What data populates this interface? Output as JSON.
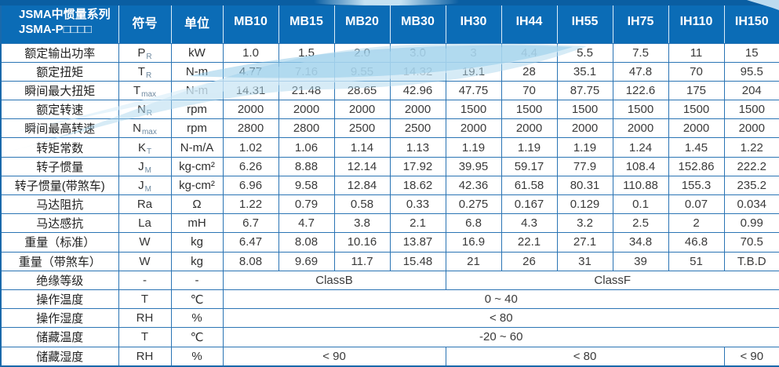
{
  "colors": {
    "header_bg": "#0b6cb6",
    "top_band": "#0a5ea2",
    "grid_line": "#2a74b4",
    "outer_border": "#1a69ab",
    "swoosh_light": "#d7edf9",
    "swoosh_mid": "#aed7ee",
    "swoosh_deep": "#8cc8e8",
    "body_text": "#3a3a3a"
  },
  "header": {
    "title_line1": "JSMA中惯量系列",
    "title_line2": "JSMA-P□□□□",
    "symbol_col": "符号",
    "unit_col": "单位",
    "models": [
      "MB10",
      "MB15",
      "MB20",
      "MB30",
      "IH30",
      "IH44",
      "IH55",
      "IH75",
      "IH110",
      "IH150"
    ]
  },
  "rows": [
    {
      "label": "额定输出功率",
      "symbol": {
        "base": "P",
        "sub": "R"
      },
      "unit": "kW",
      "values": [
        "1.0",
        "1.5",
        "2.0",
        "3.0",
        "3",
        "4.4",
        "5.5",
        "7.5",
        "11",
        "15"
      ]
    },
    {
      "label": "额定扭矩",
      "symbol": {
        "base": "T",
        "sub": "R"
      },
      "unit": "N-m",
      "values": [
        "4.77",
        "7.16",
        "9.55",
        "14.32",
        "19.1",
        "28",
        "35.1",
        "47.8",
        "70",
        "95.5"
      ]
    },
    {
      "label": "瞬间最大扭矩",
      "symbol": {
        "base": "T",
        "sub": "max"
      },
      "unit": "N-m",
      "values": [
        "14.31",
        "21.48",
        "28.65",
        "42.96",
        "47.75",
        "70",
        "87.75",
        "122.6",
        "175",
        "204"
      ]
    },
    {
      "label": "额定转速",
      "symbol": {
        "base": "N",
        "sub": "R"
      },
      "unit": "rpm",
      "values": [
        "2000",
        "2000",
        "2000",
        "2000",
        "1500",
        "1500",
        "1500",
        "1500",
        "1500",
        "1500"
      ]
    },
    {
      "label": "瞬间最高转速",
      "symbol": {
        "base": "N",
        "sub": "max"
      },
      "unit": "rpm",
      "values": [
        "2800",
        "2800",
        "2500",
        "2500",
        "2000",
        "2000",
        "2000",
        "2000",
        "2000",
        "2000"
      ]
    },
    {
      "label": "转矩常数",
      "symbol": {
        "base": "K",
        "sub": "T"
      },
      "unit": "N-m/A",
      "values": [
        "1.02",
        "1.06",
        "1.14",
        "1.13",
        "1.19",
        "1.19",
        "1.19",
        "1.24",
        "1.45",
        "1.22"
      ]
    },
    {
      "label": "转子惯量",
      "symbol": {
        "base": "J",
        "sub": "M"
      },
      "unit": "kg-cm²",
      "values": [
        "6.26",
        "8.88",
        "12.14",
        "17.92",
        "39.95",
        "59.17",
        "77.9",
        "108.4",
        "152.86",
        "222.2"
      ]
    },
    {
      "label": "转子惯量(带煞车)",
      "symbol": {
        "base": "J",
        "sub": "M"
      },
      "unit": "kg-cm²",
      "values": [
        "6.96",
        "9.58",
        "12.84",
        "18.62",
        "42.36",
        "61.58",
        "80.31",
        "110.88",
        "155.3",
        "235.2"
      ]
    },
    {
      "label": "马达阻抗",
      "symbol": {
        "base": "Ra"
      },
      "unit": "Ω",
      "values": [
        "1.22",
        "0.79",
        "0.58",
        "0.33",
        "0.275",
        "0.167",
        "0.129",
        "0.1",
        "0.07",
        "0.034"
      ]
    },
    {
      "label": "马达感抗",
      "symbol": {
        "base": "La"
      },
      "unit": "mH",
      "values": [
        "6.7",
        "4.7",
        "3.8",
        "2.1",
        "6.8",
        "4.3",
        "3.2",
        "2.5",
        "2",
        "0.99"
      ]
    },
    {
      "label": "重量（标准）",
      "symbol": {
        "base": "W"
      },
      "unit": "kg",
      "values": [
        "6.47",
        "8.08",
        "10.16",
        "13.87",
        "16.9",
        "22.1",
        "27.1",
        "34.8",
        "46.8",
        "70.5"
      ]
    },
    {
      "label": "重量（带煞车）",
      "symbol": {
        "base": "W"
      },
      "unit": "kg",
      "values": [
        "8.08",
        "9.69",
        "11.7",
        "15.48",
        "21",
        "26",
        "31",
        "39",
        "51",
        "T.B.D"
      ]
    },
    {
      "label": "绝缘等级",
      "symbol": {
        "base": "-"
      },
      "unit": "-",
      "spans": [
        {
          "text": "ClassB",
          "cols": 4
        },
        {
          "text": "ClassF",
          "cols": 6
        }
      ]
    },
    {
      "label": "操作温度",
      "symbol": {
        "base": "T"
      },
      "unit": "℃",
      "spans": [
        {
          "text": "0 ~ 40",
          "cols": 10
        }
      ]
    },
    {
      "label": "操作湿度",
      "symbol": {
        "base": "RH"
      },
      "unit": "%",
      "spans": [
        {
          "text": "< 80",
          "cols": 10
        }
      ]
    },
    {
      "label": "储藏温度",
      "symbol": {
        "base": "T"
      },
      "unit": "℃",
      "spans": [
        {
          "text": "-20 ~ 60",
          "cols": 10
        }
      ]
    },
    {
      "label": "储藏湿度",
      "symbol": {
        "base": "RH"
      },
      "unit": "%",
      "spans": [
        {
          "text": "< 90",
          "cols": 4
        },
        {
          "text": "< 80",
          "cols": 5
        },
        {
          "text": "< 90",
          "cols": 1
        }
      ]
    }
  ]
}
